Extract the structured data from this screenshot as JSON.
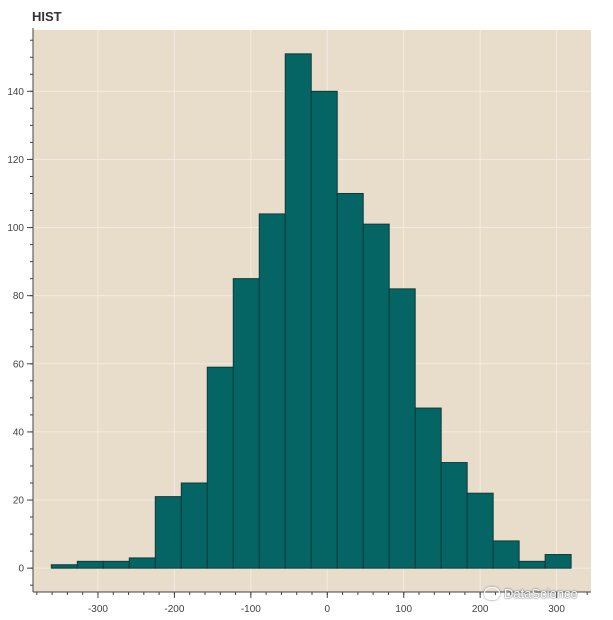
{
  "chart_data": {
    "type": "bar",
    "title": "HIST",
    "xlabel": "",
    "ylabel": "",
    "bin_edges": [
      -361,
      -327,
      -293,
      -259,
      -225,
      -191,
      -157,
      -123,
      -89,
      -55,
      -21,
      13,
      47,
      81,
      115,
      149,
      183,
      217,
      251,
      285,
      319
    ],
    "values": [
      1,
      2,
      2,
      3,
      21,
      25,
      59,
      85,
      104,
      151,
      140,
      110,
      101,
      82,
      47,
      31,
      22,
      8,
      2,
      4
    ],
    "xlim": [
      -385,
      345
    ],
    "ylim": [
      -7,
      158
    ],
    "x_ticks": [
      -300,
      -200,
      -100,
      0,
      100,
      200,
      300
    ],
    "y_ticks": [
      0,
      20,
      40,
      60,
      80,
      100,
      120,
      140
    ],
    "grid": true,
    "legend": "none",
    "colors": {
      "bar_fill": "#046564",
      "bar_stroke": "#0c3b3a",
      "plot_background": "#e8dccb",
      "grid": "#f3ece2",
      "axis": "#444444"
    }
  },
  "watermark": {
    "text": "DataScience"
  }
}
